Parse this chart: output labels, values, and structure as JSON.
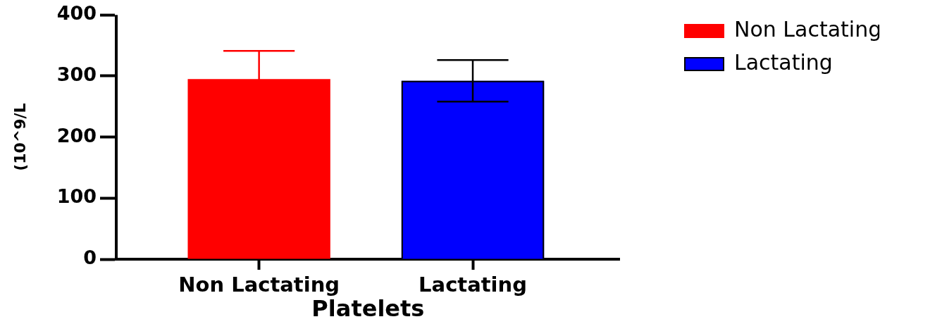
{
  "chart_data": {
    "type": "bar",
    "xlabel": "Platelets",
    "ylabel": "(10^9/L",
    "categories": [
      "Non Lactating",
      "Lactating"
    ],
    "series": [
      {
        "name": "Non Lactating",
        "color": "#ff0000",
        "values": [
          295,
          null
        ],
        "errors": [
          46,
          null
        ]
      },
      {
        "name": "Lactating",
        "color": "#0000ff",
        "values": [
          null,
          292
        ],
        "errors": [
          null,
          34
        ]
      }
    ],
    "ylim": [
      0,
      400
    ],
    "yticks": [
      0,
      100,
      200,
      300,
      400
    ],
    "grid": false,
    "legend": "top right"
  }
}
